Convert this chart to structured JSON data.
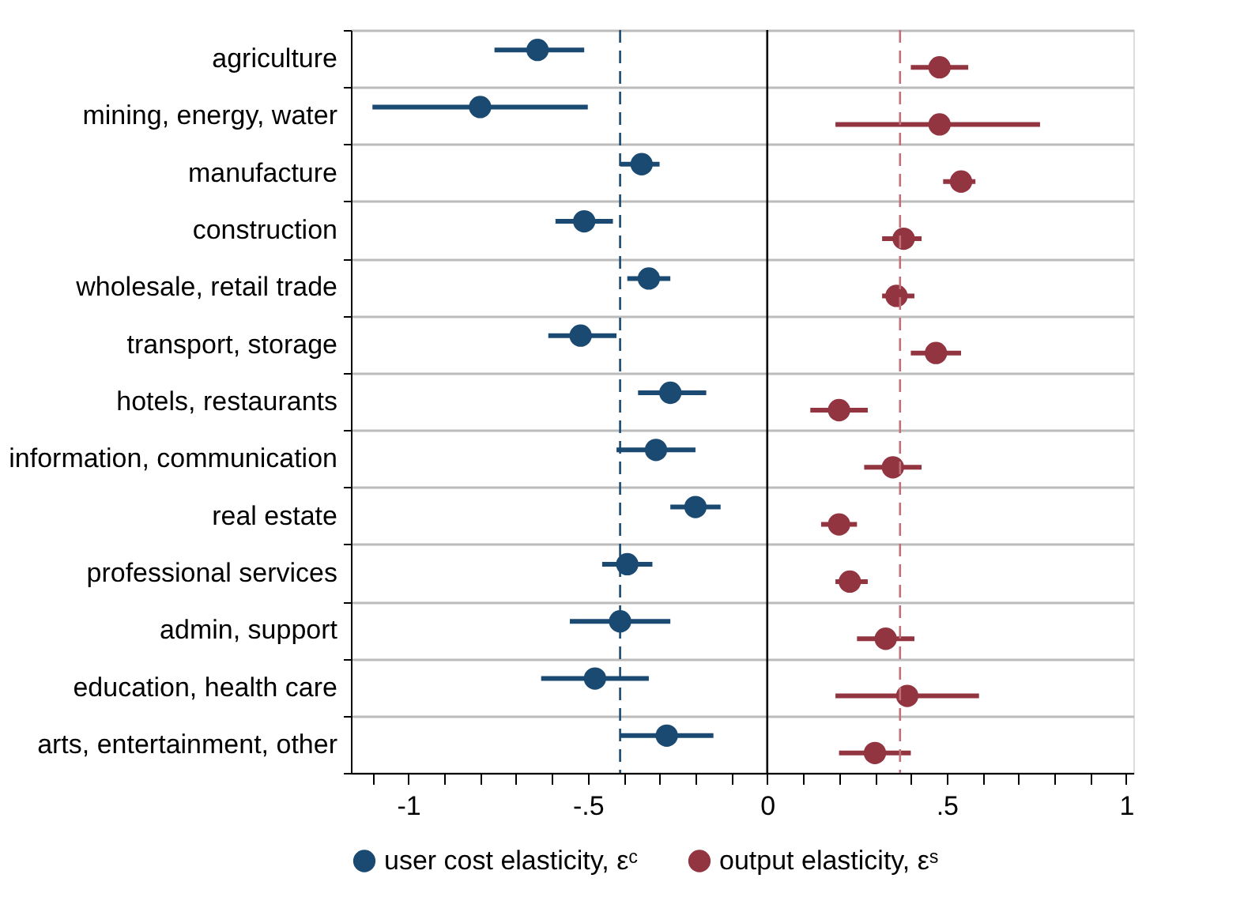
{
  "chart_data": {
    "type": "scatter",
    "orientation": "horizontal",
    "categories": [
      "agriculture",
      "mining, energy, water",
      "manufacture",
      "construction",
      "wholesale, retail trade",
      "transport, storage",
      "hotels, restaurants",
      "information, communication",
      "real estate",
      "professional services",
      "admin, support",
      "education, health care",
      "arts, entertainment, other"
    ],
    "series": [
      {
        "name": "user cost elasticity, εᶜ",
        "color": "#1a4a72",
        "values": [
          -0.64,
          -0.8,
          -0.35,
          -0.51,
          -0.33,
          -0.52,
          -0.27,
          -0.31,
          -0.2,
          -0.39,
          -0.41,
          -0.48,
          -0.28
        ],
        "errors": [
          [
            -0.76,
            -0.51
          ],
          [
            -1.1,
            -0.5
          ],
          [
            -0.41,
            -0.3
          ],
          [
            -0.59,
            -0.43
          ],
          [
            -0.39,
            -0.27
          ],
          [
            -0.61,
            -0.42
          ],
          [
            -0.36,
            -0.17
          ],
          [
            -0.42,
            -0.2
          ],
          [
            -0.27,
            -0.13
          ],
          [
            -0.46,
            -0.32
          ],
          [
            -0.55,
            -0.27
          ],
          [
            -0.63,
            -0.33
          ],
          [
            -0.41,
            -0.15
          ]
        ]
      },
      {
        "name": "output elasticity, εˢ",
        "color": "#923540",
        "values": [
          0.48,
          0.48,
          0.54,
          0.38,
          0.36,
          0.47,
          0.2,
          0.35,
          0.2,
          0.23,
          0.33,
          0.39,
          0.3
        ],
        "errors": [
          [
            0.4,
            0.56
          ],
          [
            0.19,
            0.76
          ],
          [
            0.49,
            0.58
          ],
          [
            0.32,
            0.43
          ],
          [
            0.32,
            0.41
          ],
          [
            0.4,
            0.54
          ],
          [
            0.12,
            0.28
          ],
          [
            0.27,
            0.43
          ],
          [
            0.15,
            0.25
          ],
          [
            0.19,
            0.28
          ],
          [
            0.25,
            0.41
          ],
          [
            0.19,
            0.59
          ],
          [
            0.2,
            0.4
          ]
        ]
      }
    ],
    "xlim": [
      -1.16,
      1.02
    ],
    "xticks": [
      {
        "value": -1.1,
        "label": null
      },
      -1,
      {
        "value": -0.9,
        "label": null
      },
      {
        "value": -0.8,
        "label": null
      },
      {
        "value": -0.7,
        "label": null
      },
      {
        "value": -0.6,
        "label": null
      },
      {
        "value": -0.5,
        "label": "-.5"
      },
      {
        "value": -0.4,
        "label": null
      },
      {
        "value": -0.3,
        "label": null
      },
      {
        "value": -0.2,
        "label": null
      },
      {
        "value": -0.1,
        "label": null
      },
      0,
      {
        "value": 0.1,
        "label": null
      },
      {
        "value": 0.2,
        "label": null
      },
      {
        "value": 0.3,
        "label": null
      },
      {
        "value": 0.4,
        "label": null
      },
      {
        "value": 0.5,
        "label": ".5"
      },
      {
        "value": 0.6,
        "label": null
      },
      {
        "value": 0.7,
        "label": null
      },
      {
        "value": 0.8,
        "label": null
      },
      {
        "value": 0.9,
        "label": null
      },
      1
    ],
    "ref_lines": [
      {
        "axis": "x",
        "value": -0.41,
        "color": "#1a4a72",
        "line_style": "dashed"
      },
      {
        "axis": "x",
        "value": 0,
        "color": "#000000",
        "line_style": "solid"
      },
      {
        "axis": "x",
        "value": 0.37,
        "color": "#c0707a",
        "line_style": "dashed"
      }
    ],
    "grid": "y",
    "legend": "bottom",
    "marker": "circle"
  }
}
